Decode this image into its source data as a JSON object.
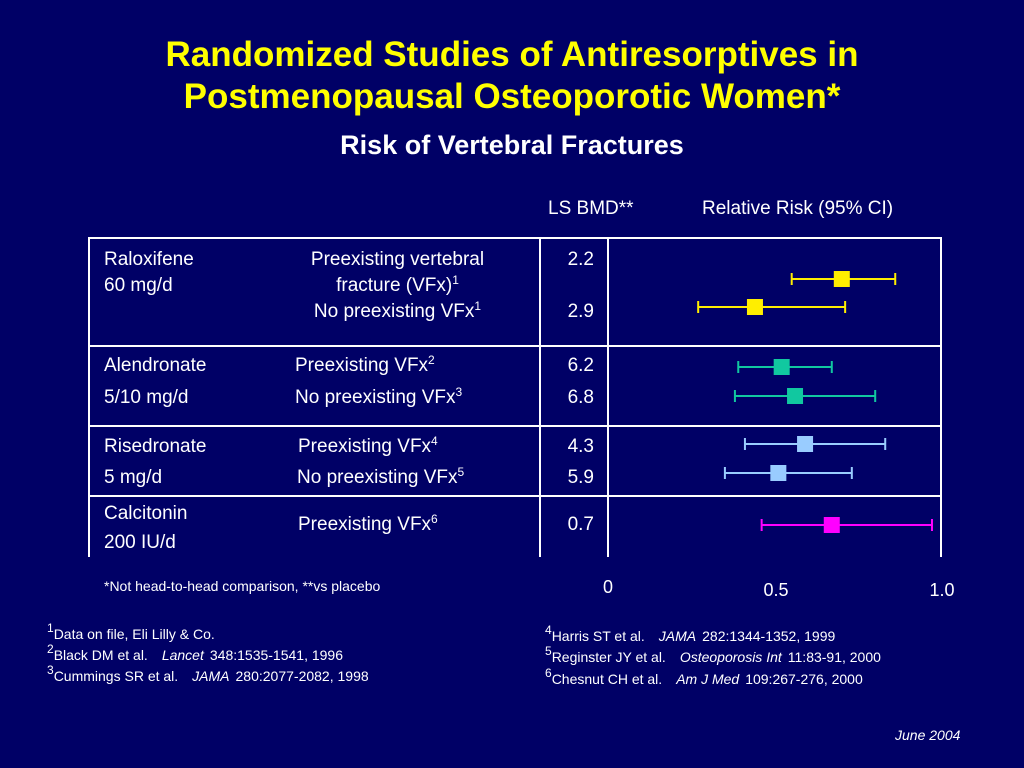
{
  "title_line1": "Randomized Studies of Antiresorptives in",
  "title_line2": "Postmenopausal Osteoporotic Women*",
  "subtitle": "Risk of Vertebral Fractures",
  "col_headers": {
    "bmd": "LS BMD**",
    "rr": "Relative Risk (95% CI)"
  },
  "rows": [
    {
      "drug": "Raloxifene",
      "dose": "60 mg/d",
      "c1_line1": "Preexisting vertebral",
      "c1_line2": "fracture (VFx)",
      "c1_sup": "1",
      "c2": "No preexisting VFx",
      "c2_sup": "1",
      "bmd1": "2.2",
      "bmd2": "2.9"
    },
    {
      "drug": "Alendronate",
      "dose": "5/10 mg/d",
      "c1": "Preexisting VFx",
      "c1_sup": "2",
      "c2": "No preexisting VFx",
      "c2_sup": "3",
      "bmd1": "6.2",
      "bmd2": "6.8"
    },
    {
      "drug": "Risedronate",
      "dose": "5 mg/d",
      "c1": "Preexisting VFx",
      "c1_sup": "4",
      "c2": "No preexisting VFx",
      "c2_sup": "5",
      "bmd1": "4.3",
      "bmd2": "5.9"
    },
    {
      "drug": "Calcitonin",
      "dose": "200 IU/d",
      "c1": "Preexisting VFx",
      "c1_sup": "6",
      "bmd1": "0.7"
    }
  ],
  "footnote": "*Not head-to-head comparison, **vs placebo",
  "refs_left": [
    {
      "num": "1",
      "text": "Data on file, Eli Lilly & Co."
    },
    {
      "num": "2",
      "text": "Black DM et al.",
      "journal": "Lancet",
      "cite": "348:1535-1541, 1996"
    },
    {
      "num": "3",
      "text": "Cummings SR et al.",
      "journal": "JAMA",
      "cite": "280:2077-2082, 1998"
    }
  ],
  "refs_right": [
    {
      "num": "4",
      "text": "Harris ST et al.",
      "journal": "JAMA",
      "cite": "282:1344-1352, 1999"
    },
    {
      "num": "5",
      "text": "Reginster JY et al.",
      "journal": "Osteoporosis Int",
      "cite": "11:83-91, 2000"
    },
    {
      "num": "6",
      "text": "Chesnut CH et al.",
      "journal": "Am J Med",
      "cite": "109:267-276, 2000"
    }
  ],
  "date": "June 2004",
  "colors": {
    "background": "#000066",
    "title": "#ffff00",
    "raloxifene": "#ffee00",
    "alendronate": "#11c8a0",
    "risedronate": "#99ccff",
    "calcitonin": "#ff00ff"
  },
  "chart_data": {
    "type": "scatter",
    "subtype": "forest-plot",
    "xlabel": "",
    "ylabel": "",
    "xticks": [
      "0",
      "0.5",
      "1.0"
    ],
    "xlim": [
      0,
      1.0
    ],
    "grid": false,
    "series": [
      {
        "name": "Raloxifene - Preexisting vertebral fracture (VFx)",
        "color": "#ffee00",
        "estimate": 0.7,
        "ci": [
          0.55,
          0.86
        ]
      },
      {
        "name": "Raloxifene - No preexisting VFx",
        "color": "#ffee00",
        "estimate": 0.44,
        "ci": [
          0.27,
          0.71
        ]
      },
      {
        "name": "Alendronate - Preexisting VFx",
        "color": "#11c8a0",
        "estimate": 0.52,
        "ci": [
          0.39,
          0.67
        ]
      },
      {
        "name": "Alendronate - No preexisting VFx",
        "color": "#11c8a0",
        "estimate": 0.56,
        "ci": [
          0.38,
          0.8
        ]
      },
      {
        "name": "Risedronate - Preexisting VFx",
        "color": "#99ccff",
        "estimate": 0.59,
        "ci": [
          0.41,
          0.83
        ]
      },
      {
        "name": "Risedronate - No preexisting VFx",
        "color": "#99ccff",
        "estimate": 0.51,
        "ci": [
          0.35,
          0.73
        ]
      },
      {
        "name": "Calcitonin - Preexisting VFx",
        "color": "#ff00ff",
        "estimate": 0.67,
        "ci": [
          0.46,
          0.97
        ]
      }
    ]
  }
}
